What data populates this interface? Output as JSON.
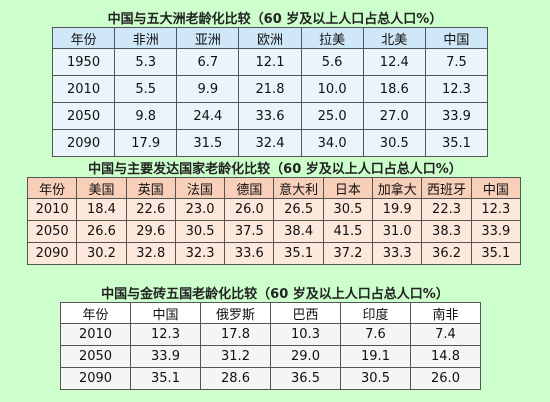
{
  "tables": [
    {
      "title": "中国与五大洲老龄化比较（60 岁及以上人口占总人口%）",
      "header": [
        "年份",
        "非洲",
        "亚洲",
        "欧洲",
        "拉美",
        "北美",
        "中国"
      ],
      "rows": [
        [
          "1950",
          "5.3",
          "6.7",
          "12.1",
          "5.6",
          "12.4",
          "7.5"
        ],
        [
          "2010",
          "5.5",
          "9.9",
          "21.8",
          "10.0",
          "18.6",
          "12.3"
        ],
        [
          "2050",
          "9.8",
          "24.4",
          "33.6",
          "25.0",
          "27.0",
          "33.9"
        ],
        [
          "2090",
          "17.9",
          "31.5",
          "32.4",
          "34.0",
          "30.5",
          "35.1"
        ]
      ]
    },
    {
      "title": "中国与主要发达国家老龄化比较（60 岁及以上人口占总人口%）",
      "header": [
        "年份",
        "美国",
        "英国",
        "法国",
        "德国",
        "意大利",
        "日本",
        "加拿大",
        "西班牙",
        "中国"
      ],
      "rows": [
        [
          "2010",
          "18.4",
          "22.6",
          "23.0",
          "26.0",
          "26.5",
          "30.5",
          "19.9",
          "22.3",
          "12.3"
        ],
        [
          "2050",
          "26.6",
          "29.6",
          "30.5",
          "37.5",
          "38.4",
          "41.5",
          "31.0",
          "38.3",
          "33.9"
        ],
        [
          "2090",
          "30.2",
          "32.8",
          "32.3",
          "33.6",
          "35.1",
          "37.2",
          "33.3",
          "36.2",
          "35.1"
        ]
      ]
    },
    {
      "title": "中国与金砖五国老龄化比较（60 岁及以上人口占总人口%）",
      "header": [
        "年份",
        "中国",
        "俄罗斯",
        "巴西",
        "印度",
        "南非"
      ],
      "rows": [
        [
          "2010",
          "12.3",
          "17.8",
          "10.3",
          "7.6",
          "7.4"
        ],
        [
          "2050",
          "33.9",
          "31.2",
          "29.0",
          "19.1",
          "14.8"
        ],
        [
          "2090",
          "35.1",
          "28.6",
          "36.5",
          "30.5",
          "26.0"
        ]
      ]
    }
  ]
}
